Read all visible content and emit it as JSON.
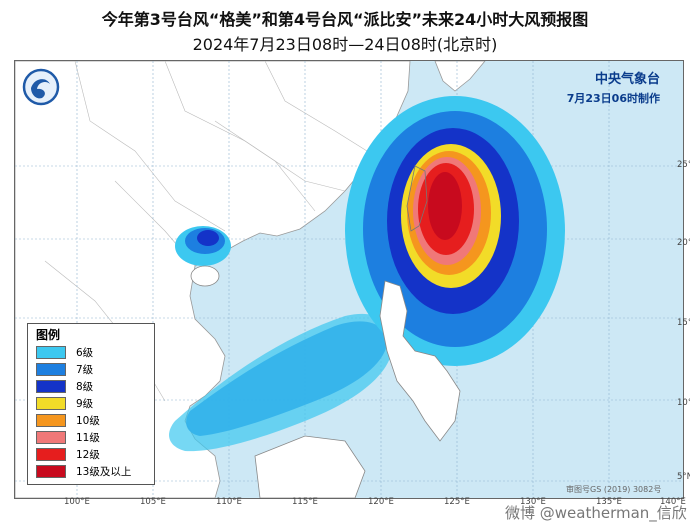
{
  "title": {
    "line1": "今年第3号台风“格美”和第4号台风“派比安”未来24小时大风预报图",
    "line2": "2024年7月23日08时—24日08时(北京时)"
  },
  "agency": {
    "name": "中央气象台",
    "issued": "7月23日06时制作"
  },
  "legend": {
    "title": "图例",
    "items": [
      {
        "label": "6级",
        "color": "#3cc8f0"
      },
      {
        "label": "7级",
        "color": "#1d7fe0"
      },
      {
        "label": "8级",
        "color": "#1433c8"
      },
      {
        "label": "9级",
        "color": "#f2dc28"
      },
      {
        "label": "10级",
        "color": "#f5961e"
      },
      {
        "label": "11级",
        "color": "#f07878"
      },
      {
        "label": "12级",
        "color": "#e61e1e"
      },
      {
        "label": "13级及以上",
        "color": "#c80a1e"
      }
    ]
  },
  "axes": {
    "lon_ticks": [
      "100°E",
      "105°E",
      "110°E",
      "115°E",
      "120°E",
      "125°E",
      "130°E",
      "135°E",
      "140°E"
    ],
    "lat_ticks": [
      "25°N",
      "20°N",
      "15°N",
      "10°N",
      "5°N"
    ]
  },
  "credit": "审图号GS (2019) 3082号",
  "watermark": "微博 @weatherman_信欣"
}
